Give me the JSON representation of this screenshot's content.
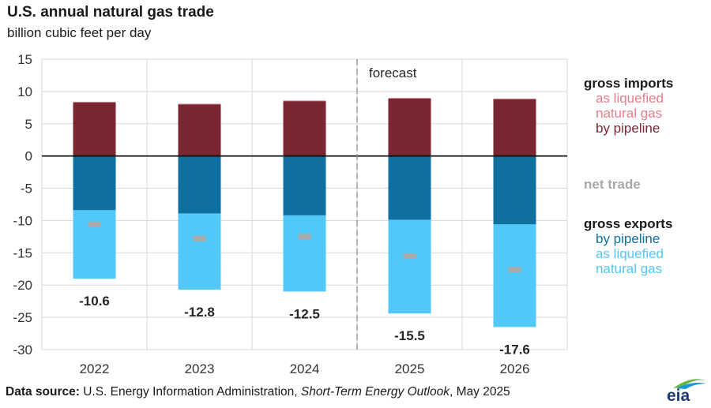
{
  "title": "U.S. annual natural gas trade",
  "subtitle": "billion cubic feet per day",
  "forecast_label": "forecast",
  "legend": {
    "imports_head": "gross imports",
    "imports_lng_1": "as liquefied",
    "imports_lng_2": "natural gas",
    "imports_pipeline": "by pipeline",
    "net_trade": "net trade",
    "exports_head": "gross exports",
    "exports_pipeline": "by pipeline",
    "exports_lng_1": "as liquefied",
    "exports_lng_2": "natural gas"
  },
  "source": {
    "bold": "Data source:",
    "plain1": "U.S. Energy Information Administration,",
    "italic": "Short-Term Energy Outlook",
    "plain2": ", May 2025"
  },
  "logo_text": "eia",
  "colors": {
    "imports_pipeline": "#7a2631",
    "imports_lng": "#e57f8a",
    "exports_pipeline": "#0f6f9f",
    "exports_lng": "#52c8f9",
    "net_trade": "#a9a9a9",
    "imports_head": "#9b2a3a",
    "exports_head": "#1a9ad6"
  },
  "chart_data": {
    "type": "bar",
    "stacked": true,
    "categories": [
      "2022",
      "2023",
      "2024",
      "2025",
      "2026"
    ],
    "forecast_from": "2025",
    "ylim": [
      -30,
      15
    ],
    "yticks": [
      15,
      10,
      5,
      0,
      -5,
      -10,
      -15,
      -20,
      -25,
      -30
    ],
    "grid": true,
    "series": [
      {
        "name": "gross imports by pipeline",
        "values": [
          8.3,
          8.0,
          8.5,
          8.9,
          8.8
        ]
      },
      {
        "name": "gross imports as liquefied natural gas",
        "values": [
          0.1,
          0.1,
          0.1,
          0.1,
          0.1
        ]
      },
      {
        "name": "gross exports by pipeline",
        "values": [
          -8.4,
          -8.9,
          -9.2,
          -9.9,
          -10.6
        ]
      },
      {
        "name": "gross exports as liquefied natural gas",
        "values": [
          -10.6,
          -11.8,
          -11.8,
          -14.5,
          -15.9
        ]
      }
    ],
    "net_trade": [
      -10.6,
      -12.8,
      -12.5,
      -15.5,
      -17.6
    ],
    "net_trade_labels": [
      "-10.6",
      "-12.8",
      "-12.5",
      "-15.5",
      "-17.6"
    ]
  }
}
